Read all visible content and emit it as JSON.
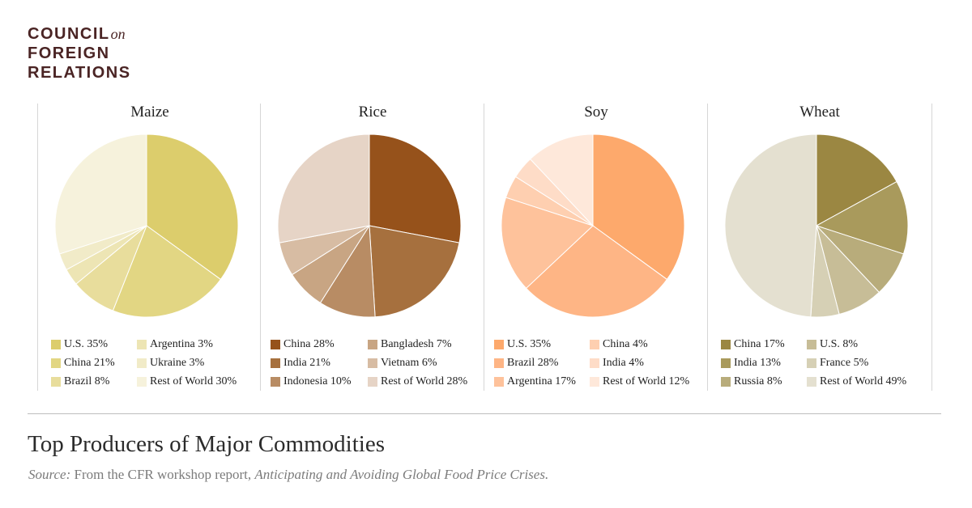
{
  "logo": {
    "line1": "COUNCIL",
    "on": "on",
    "line2": "FOREIGN",
    "line3": "RELATIONS"
  },
  "title": "Top Producers of Major Commodities",
  "source": {
    "label": "Source:",
    "text": " From the CFR workshop report, ",
    "report": "Anticipating and Avoiding Global Food Price Crises."
  },
  "chart_data": [
    {
      "type": "pie",
      "title": "Maize",
      "slices": [
        {
          "label": "U.S.",
          "value": 35,
          "legend": "U.S. 35%",
          "color": "#dccd6c"
        },
        {
          "label": "China",
          "value": 21,
          "legend": "China 21%",
          "color": "#e2d683"
        },
        {
          "label": "Brazil",
          "value": 8,
          "legend": "Brazil 8%",
          "color": "#e8dd9c"
        },
        {
          "label": "Argentina",
          "value": 3,
          "legend": "Argentina 3%",
          "color": "#ede5b4"
        },
        {
          "label": "Ukraine",
          "value": 3,
          "legend": "Ukraine 3%",
          "color": "#f1ebc8"
        },
        {
          "label": "Rest of World",
          "value": 30,
          "legend": "Rest of World 30%",
          "color": "#f6f2dc"
        }
      ]
    },
    {
      "type": "pie",
      "title": "Rice",
      "slices": [
        {
          "label": "China",
          "value": 28,
          "legend": "China 28%",
          "color": "#96521b"
        },
        {
          "label": "India",
          "value": 21,
          "legend": "India 21%",
          "color": "#a6703e"
        },
        {
          "label": "Indonesia",
          "value": 10,
          "legend": "Indonesia 10%",
          "color": "#b88c64"
        },
        {
          "label": "Bangladesh",
          "value": 7,
          "legend": "Bangladesh 7%",
          "color": "#c8a583"
        },
        {
          "label": "Vietnam",
          "value": 6,
          "legend": "Vietnam 6%",
          "color": "#d7bca3"
        },
        {
          "label": "Rest of World",
          "value": 28,
          "legend": "Rest of World 28%",
          "color": "#e6d4c6"
        }
      ]
    },
    {
      "type": "pie",
      "title": "Soy",
      "slices": [
        {
          "label": "U.S.",
          "value": 35,
          "legend": "U.S. 35%",
          "color": "#fda96c"
        },
        {
          "label": "Brazil",
          "value": 28,
          "legend": "Brazil 28%",
          "color": "#feb585"
        },
        {
          "label": "Argentina",
          "value": 17,
          "legend": "Argentina 17%",
          "color": "#fec29b"
        },
        {
          "label": "China",
          "value": 4,
          "legend": "China 4%",
          "color": "#fecfb0"
        },
        {
          "label": "India",
          "value": 4,
          "legend": "India 4%",
          "color": "#fedcc7"
        },
        {
          "label": "Rest of World",
          "value": 12,
          "legend": "Rest of World 12%",
          "color": "#fee8da"
        }
      ]
    },
    {
      "type": "pie",
      "title": "Wheat",
      "slices": [
        {
          "label": "China",
          "value": 17,
          "legend": "China 17%",
          "color": "#9b8742"
        },
        {
          "label": "India",
          "value": 13,
          "legend": "India 13%",
          "color": "#a99a5c"
        },
        {
          "label": "Russia",
          "value": 8,
          "legend": "Russia 8%",
          "color": "#b8ac7b"
        },
        {
          "label": "U.S.",
          "value": 8,
          "legend": "U.S. 8%",
          "color": "#c7bd97"
        },
        {
          "label": "France",
          "value": 5,
          "legend": "France 5%",
          "color": "#d6d0b5"
        },
        {
          "label": "Rest of World",
          "value": 49,
          "legend": "Rest of World 49%",
          "color": "#e4e0d0"
        }
      ]
    }
  ]
}
